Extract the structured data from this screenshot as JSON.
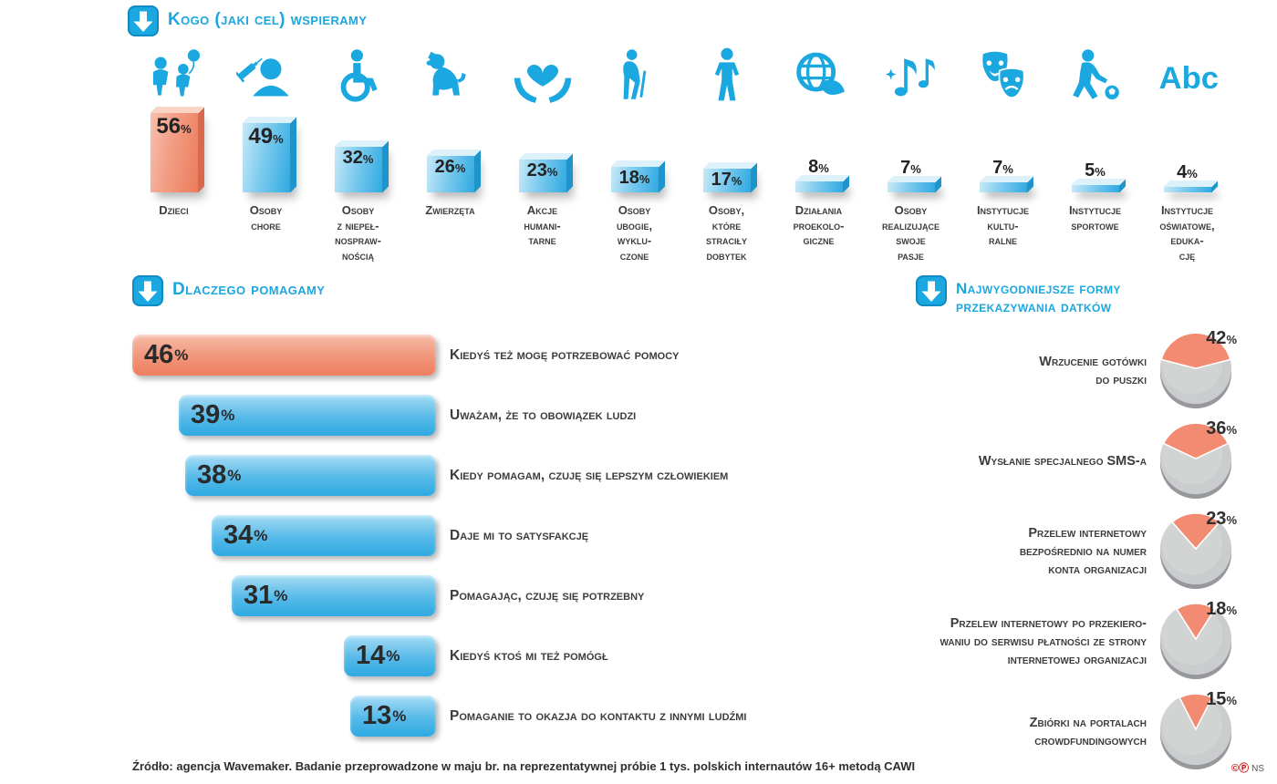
{
  "percent_sign": "%",
  "colors": {
    "accent_blue": "#1BA7E0",
    "highlight_salmon": "#F28B72",
    "pie_gray": "#CBCCCE",
    "text_dark": "#3C3C3B"
  },
  "chart_data": [
    {
      "type": "bar",
      "title": "Kogo (jaki cel) wspieramy",
      "unit": "%",
      "ylim": [
        0,
        60
      ],
      "highlight_index": 0,
      "icons": [
        "children-icon",
        "sick-person-icon",
        "wheelchair-icon",
        "dog-icon",
        "hands-holding-heart-icon",
        "elderly-person-icon",
        "standing-person-icon",
        "globe-leaf-icon",
        "music-notes-icon",
        "theater-masks-icon",
        "child-football-icon",
        "abc-letters-icon"
      ],
      "categories": [
        "Dzieci",
        "Osoby\nchore",
        "Osoby\nz niepeł-\nnospraw-\nnością",
        "Zwierzęta",
        "Akcje\nhumani-\ntarne",
        "Osoby\nubogie,\nwyklu-\nczone",
        "Osoby,\nktóre\nstraciły\ndobytek",
        "Działania\nproekolo-\ngiczne",
        "Osoby\nrealizujące\nswoje\npasje",
        "Instytucje\nkultu-\nralne",
        "Instytucje\nsportowe",
        "Instytucje\noświatowe,\neduka-\ncję"
      ],
      "values": [
        56,
        49,
        32,
        26,
        23,
        18,
        17,
        8,
        7,
        7,
        5,
        4
      ]
    },
    {
      "type": "bar",
      "orientation": "horizontal",
      "title": "Dlaczego pomagamy",
      "unit": "%",
      "xlim": [
        0,
        50
      ],
      "highlight_index": 0,
      "categories": [
        "Kiedyś też mogę potrzebować pomocy",
        "Uważam, że to obowiązek ludzi",
        "Kiedy pomagam, czuję się lepszym człowiekiem",
        "Daje mi to satysfakcję",
        "Pomagając, czuję się potrzebny",
        "Kiedyś ktoś mi też pomógł",
        "Pomaganie to okazja do kontaktu z innymi ludźmi"
      ],
      "values": [
        46,
        39,
        38,
        34,
        31,
        14,
        13
      ]
    },
    {
      "type": "pie",
      "title": "Najwygodniejsze formy\nprzekazywania datków",
      "unit": "%",
      "note": "each pie shows the stated share highlighted against the remainder",
      "categories": [
        "Wrzucenie gotówki\ndo puszki",
        "Wysłanie specjalnego SMS-a",
        "Przelew internetowy\nbezpośrednio na numer\nkonta organizacji",
        "Przelew internetowy po przekiero-\nwaniu do serwisu płatności ze strony\ninternetowej organizacji",
        "Zbiórki na portalach\ncrowdfundingowych"
      ],
      "values": [
        42,
        36,
        23,
        18,
        15
      ]
    }
  ],
  "footer": {
    "source": "Źródło: agencja Wavemaker. Badanie przeprowadzone w maju br. na reprezentatywnej próbie 1 tys. polskich internautów 16+ metodą CAWI",
    "marks": "©Ⓟ",
    "publisher": "NS"
  }
}
